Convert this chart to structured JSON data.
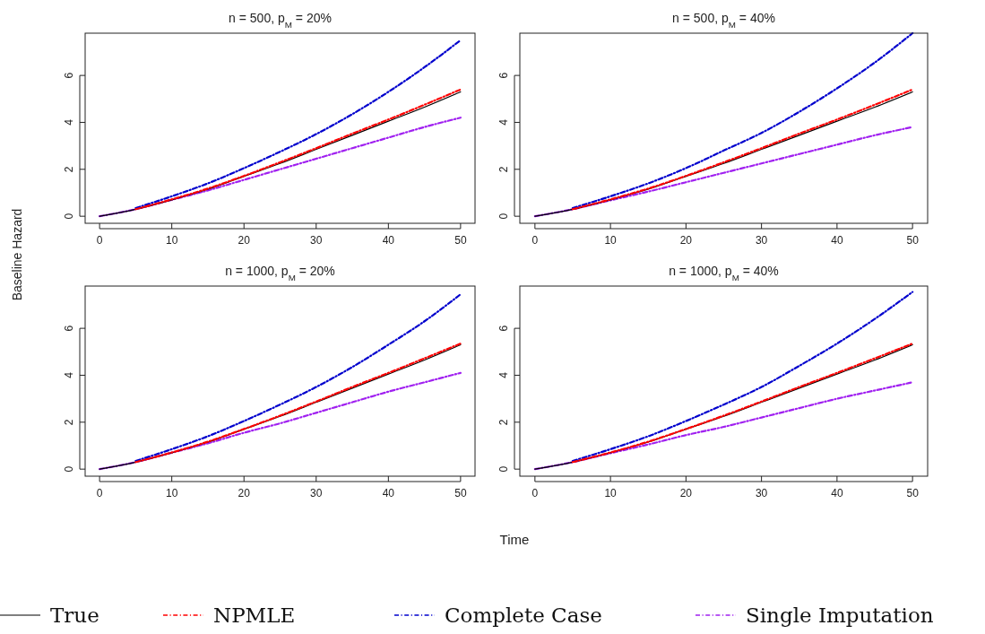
{
  "chart_data": [
    {
      "type": "line",
      "title": "n = 500, p$_{M}$ = 20%",
      "ylabel": "Baseline Hazard",
      "x": [
        0,
        5,
        10,
        15,
        20,
        25,
        30,
        35,
        40,
        45,
        50
      ],
      "xlim": [
        -2,
        52
      ],
      "ylim": [
        -0.3,
        7.8
      ],
      "xticks": [
        0,
        10,
        20,
        30,
        40,
        50
      ],
      "yticks": [
        0,
        2,
        4,
        6
      ],
      "grid": false,
      "legend": "bottom",
      "series": [
        {
          "name": "True",
          "color": "#000000",
          "line_style": "solid",
          "values": [
            0,
            0.3,
            0.7,
            1.15,
            1.7,
            2.25,
            2.85,
            3.45,
            4.05,
            4.65,
            5.3
          ]
        },
        {
          "name": "NPMLE",
          "color": "#ff0000",
          "line_style": "dashed",
          "values": [
            null,
            0.3,
            0.72,
            1.18,
            1.72,
            2.3,
            2.9,
            3.52,
            4.12,
            4.75,
            5.4
          ]
        },
        {
          "name": "Complete Case",
          "color": "#0000cd",
          "line_style": "dashed",
          "values": [
            null,
            0.35,
            0.85,
            1.4,
            2.05,
            2.75,
            3.5,
            4.35,
            5.3,
            6.35,
            7.5
          ]
        },
        {
          "name": "Single Imputation",
          "color": "#a020f0",
          "line_style": "dashed",
          "values": [
            0,
            0.3,
            0.7,
            1.1,
            1.55,
            2.0,
            2.45,
            2.9,
            3.35,
            3.8,
            4.2
          ]
        }
      ]
    },
    {
      "type": "line",
      "title": "n = 500, p$_{M}$ = 40%",
      "x": [
        0,
        5,
        10,
        15,
        20,
        25,
        30,
        35,
        40,
        45,
        50
      ],
      "xlim": [
        -2,
        52
      ],
      "ylim": [
        -0.3,
        7.8
      ],
      "xticks": [
        0,
        10,
        20,
        30,
        40,
        50
      ],
      "yticks": [
        0,
        2,
        4,
        6
      ],
      "grid": false,
      "series": [
        {
          "color": "#000000",
          "line_style": "solid",
          "values": [
            0,
            0.3,
            0.7,
            1.15,
            1.7,
            2.25,
            2.85,
            3.45,
            4.05,
            4.65,
            5.3
          ]
        },
        {
          "color": "#ff0000",
          "line_style": "dashed",
          "values": [
            null,
            0.3,
            0.72,
            1.18,
            1.72,
            2.3,
            2.9,
            3.52,
            4.12,
            4.75,
            5.4
          ]
        },
        {
          "color": "#0000cd",
          "line_style": "dashed",
          "values": [
            null,
            0.35,
            0.85,
            1.4,
            2.05,
            2.8,
            3.55,
            4.45,
            5.45,
            6.55,
            7.8
          ]
        },
        {
          "color": "#a020f0",
          "line_style": "dashed",
          "values": [
            0,
            0.3,
            0.68,
            1.05,
            1.45,
            1.85,
            2.25,
            2.65,
            3.05,
            3.45,
            3.8
          ]
        }
      ]
    },
    {
      "type": "line",
      "title": "n = 1000, p$_{M}$ = 20%",
      "x": [
        0,
        5,
        10,
        15,
        20,
        25,
        30,
        35,
        40,
        45,
        50
      ],
      "xlim": [
        -2,
        52
      ],
      "ylim": [
        -0.3,
        7.8
      ],
      "xticks": [
        0,
        10,
        20,
        30,
        40,
        50
      ],
      "yticks": [
        0,
        2,
        4,
        6
      ],
      "grid": false,
      "series": [
        {
          "color": "#000000",
          "line_style": "solid",
          "values": [
            0,
            0.3,
            0.7,
            1.15,
            1.7,
            2.25,
            2.85,
            3.45,
            4.05,
            4.65,
            5.3
          ]
        },
        {
          "color": "#ff0000",
          "line_style": "dashed",
          "values": [
            null,
            0.3,
            0.71,
            1.17,
            1.71,
            2.28,
            2.88,
            3.5,
            4.1,
            4.72,
            5.35
          ]
        },
        {
          "color": "#0000cd",
          "line_style": "dashed",
          "values": [
            null,
            0.35,
            0.85,
            1.4,
            2.05,
            2.75,
            3.5,
            4.35,
            5.3,
            6.3,
            7.45
          ]
        },
        {
          "color": "#a020f0",
          "line_style": "dashed",
          "values": [
            0,
            0.3,
            0.7,
            1.1,
            1.55,
            1.95,
            2.4,
            2.85,
            3.3,
            3.7,
            4.1
          ]
        }
      ]
    },
    {
      "type": "line",
      "title": "n = 1000, p$_{M}$ = 40%",
      "xlabel": "Time",
      "x": [
        0,
        5,
        10,
        15,
        20,
        25,
        30,
        35,
        40,
        45,
        50
      ],
      "xlim": [
        -2,
        52
      ],
      "ylim": [
        -0.3,
        7.8
      ],
      "xticks": [
        0,
        10,
        20,
        30,
        40,
        50
      ],
      "yticks": [
        0,
        2,
        4,
        6
      ],
      "grid": false,
      "series": [
        {
          "color": "#000000",
          "line_style": "solid",
          "values": [
            0,
            0.3,
            0.7,
            1.15,
            1.7,
            2.25,
            2.85,
            3.45,
            4.05,
            4.65,
            5.3
          ]
        },
        {
          "color": "#ff0000",
          "line_style": "dashed",
          "values": [
            null,
            0.3,
            0.71,
            1.17,
            1.71,
            2.28,
            2.88,
            3.5,
            4.1,
            4.72,
            5.35
          ]
        },
        {
          "color": "#0000cd",
          "line_style": "dashed",
          "values": [
            null,
            0.35,
            0.85,
            1.4,
            2.05,
            2.75,
            3.5,
            4.4,
            5.35,
            6.4,
            7.55
          ]
        },
        {
          "color": "#a020f0",
          "line_style": "dashed",
          "values": [
            0,
            0.3,
            0.68,
            1.05,
            1.45,
            1.8,
            2.2,
            2.6,
            3.0,
            3.35,
            3.7
          ]
        }
      ]
    }
  ]
}
